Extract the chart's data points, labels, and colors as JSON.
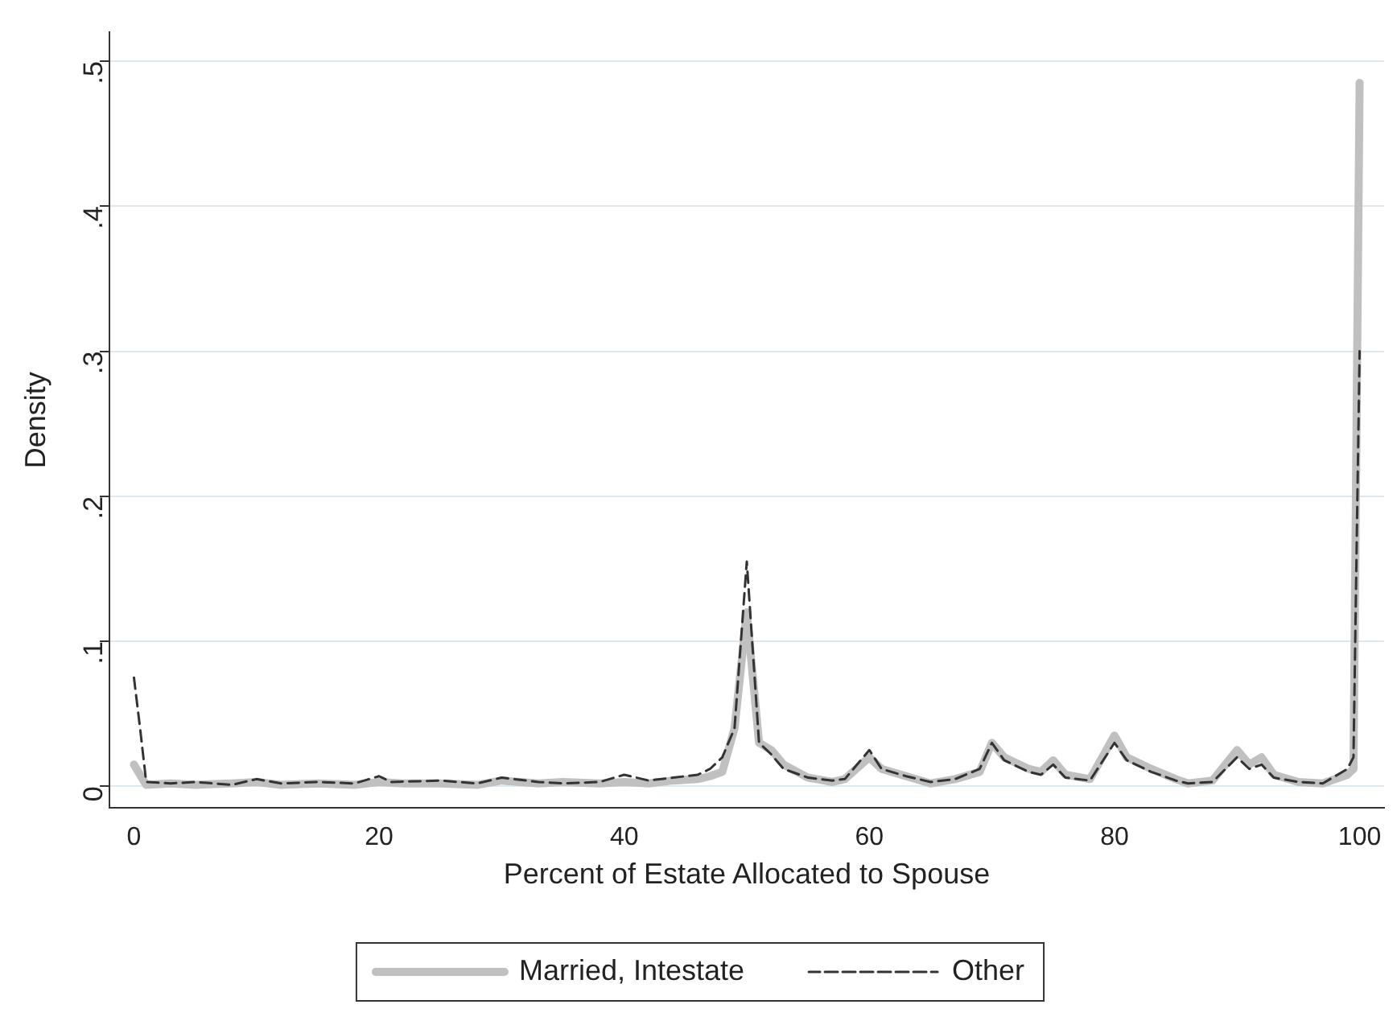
{
  "chart_data": {
    "type": "line",
    "xlabel": "Percent of Estate Allocated to Spouse",
    "ylabel": "Density",
    "xlim": [
      -2,
      102
    ],
    "ylim": [
      -0.015,
      0.52
    ],
    "xticks": [
      0,
      20,
      40,
      60,
      80,
      100
    ],
    "yticks": [
      {
        "value": 0,
        "label": "0"
      },
      {
        "value": 0.1,
        "label": ".1"
      },
      {
        "value": 0.2,
        "label": ".2"
      },
      {
        "value": 0.3,
        "label": ".3"
      },
      {
        "value": 0.4,
        "label": ".4"
      },
      {
        "value": 0.5,
        "label": ".5"
      }
    ],
    "grid": "y",
    "legend": "bottom",
    "marker": "none",
    "series": [
      {
        "name": "Married, Intestate",
        "color": "#c0c0c0",
        "line_style": "solid",
        "x": [
          0,
          1,
          3,
          5,
          8,
          10,
          12,
          15,
          18,
          20,
          22,
          25,
          28,
          30,
          33,
          35,
          38,
          40,
          42,
          44,
          46,
          47,
          48,
          49,
          50,
          51,
          52,
          53,
          55,
          57,
          58,
          60,
          61,
          63,
          65,
          67,
          69,
          70,
          71,
          73,
          74,
          75,
          76,
          78,
          80,
          81,
          83,
          85,
          86,
          88,
          90,
          91,
          92,
          93,
          95,
          97,
          99,
          99.5,
          100
        ],
        "values": [
          0.015,
          0.001,
          0.002,
          0.001,
          0.002,
          0.003,
          0.001,
          0.002,
          0.001,
          0.003,
          0.002,
          0.002,
          0.001,
          0.004,
          0.002,
          0.003,
          0.002,
          0.003,
          0.002,
          0.004,
          0.005,
          0.007,
          0.01,
          0.04,
          0.12,
          0.03,
          0.025,
          0.015,
          0.006,
          0.003,
          0.005,
          0.02,
          0.012,
          0.007,
          0.002,
          0.005,
          0.01,
          0.03,
          0.02,
          0.012,
          0.01,
          0.018,
          0.008,
          0.005,
          0.035,
          0.02,
          0.012,
          0.005,
          0.002,
          0.004,
          0.025,
          0.015,
          0.02,
          0.008,
          0.003,
          0.002,
          0.008,
          0.012,
          0.485
        ]
      },
      {
        "name": "Other",
        "color": "#333333",
        "line_style": "dashed",
        "x": [
          0,
          0.5,
          1,
          3,
          5,
          8,
          10,
          12,
          15,
          18,
          20,
          21,
          25,
          28,
          30,
          33,
          35,
          38,
          40,
          42,
          44,
          46,
          47,
          48,
          49,
          50,
          51,
          52,
          53,
          55,
          57,
          58,
          60,
          61,
          63,
          65,
          67,
          69,
          70,
          71,
          73,
          74,
          75,
          76,
          78,
          80,
          81,
          83,
          85,
          86,
          88,
          90,
          91,
          92,
          93,
          95,
          97,
          99,
          99.5,
          100
        ],
        "values": [
          0.075,
          0.04,
          0.003,
          0.002,
          0.003,
          0.001,
          0.005,
          0.002,
          0.003,
          0.002,
          0.007,
          0.003,
          0.004,
          0.002,
          0.006,
          0.003,
          0.002,
          0.003,
          0.008,
          0.004,
          0.006,
          0.008,
          0.012,
          0.02,
          0.04,
          0.155,
          0.03,
          0.022,
          0.012,
          0.006,
          0.004,
          0.005,
          0.025,
          0.012,
          0.007,
          0.003,
          0.005,
          0.012,
          0.03,
          0.018,
          0.01,
          0.008,
          0.015,
          0.006,
          0.004,
          0.03,
          0.018,
          0.01,
          0.004,
          0.002,
          0.003,
          0.02,
          0.012,
          0.015,
          0.006,
          0.003,
          0.002,
          0.012,
          0.02,
          0.3
        ]
      }
    ]
  }
}
